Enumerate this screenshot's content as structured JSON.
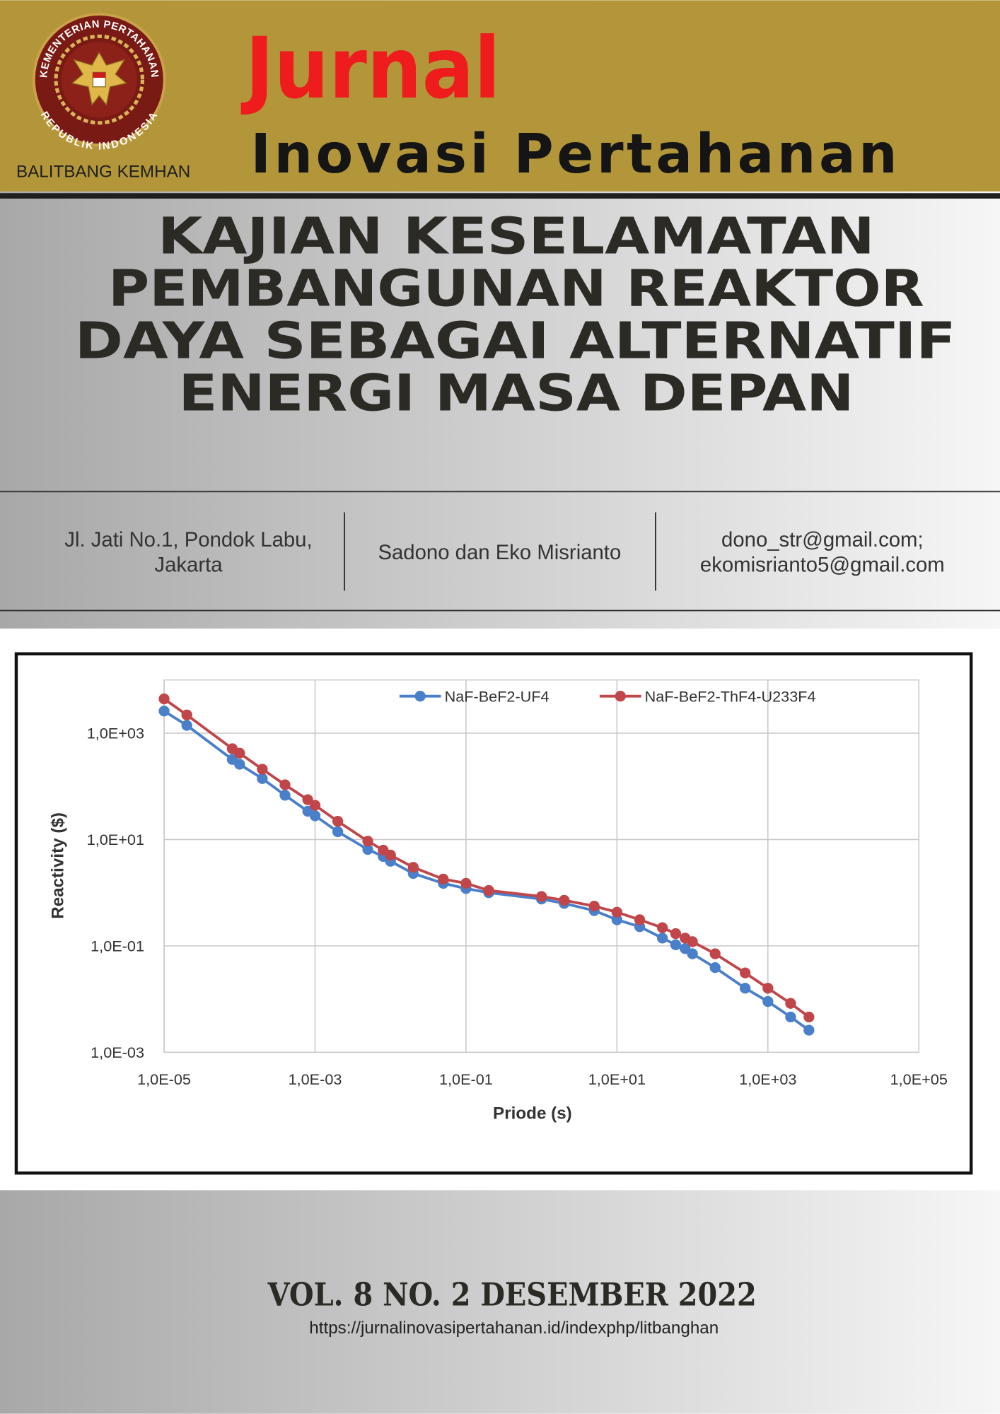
{
  "header": {
    "emblem_top": "KEMENTERIAN PERTAHANAN",
    "emblem_bottom": "REPUBLIK INDONESIA",
    "org": "BALITBANG KEMHAN",
    "journal_line1": "Jurnal",
    "journal_line2": "Inovasi Pertahanan"
  },
  "article": {
    "title_lines": [
      "KAJIAN KESELAMATAN",
      "PEMBANGUNAN REAKTOR",
      "DAYA SEBAGAI ALTERNATIF",
      "ENERGI MASA DEPAN"
    ],
    "address_lines": [
      "Jl. Jati No.1, Pondok Labu,",
      "Jakarta"
    ],
    "authors": "Sadono dan Eko Misrianto",
    "emails": [
      "dono_str@gmail.com;",
      "ekomisrianto5@gmail.com"
    ]
  },
  "chart_data": {
    "type": "line",
    "x_label": "Priode (s)",
    "y_label": "Reactivity ($)",
    "log_x": true,
    "log_y": true,
    "grid": true,
    "legend": "top",
    "marker": "circle",
    "xlim": [
      1e-05,
      100000
    ],
    "ylim": [
      0.001,
      10000
    ],
    "xticks": [
      {
        "value": 1e-05,
        "label": "1,0E-05"
      },
      {
        "value": 0.001,
        "label": "1,0E-03"
      },
      {
        "value": 0.1,
        "label": "1,0E-01"
      },
      {
        "value": 10,
        "label": "1,0E+01"
      },
      {
        "value": 1000,
        "label": "1,0E+03"
      },
      {
        "value": 100000,
        "label": "1,0E+05"
      }
    ],
    "yticks": [
      {
        "value": 0.001,
        "label": "1,0E-03"
      },
      {
        "value": 0.1,
        "label": "1,0E-01"
      },
      {
        "value": 10,
        "label": "1,0E+01"
      },
      {
        "value": 1000,
        "label": "1,0E+03"
      }
    ],
    "x": [
      1e-05,
      2e-05,
      8e-05,
      0.0001,
      0.0002,
      0.0004,
      0.0008,
      0.001,
      0.002,
      0.005,
      0.008,
      0.01,
      0.02,
      0.05,
      0.1,
      0.2,
      1,
      2,
      5,
      10,
      20,
      40,
      60,
      80,
      100,
      200,
      500,
      1000,
      2000,
      3500
    ],
    "series": [
      {
        "name": "NaF-BeF2-UF4",
        "color": "#4a7fc9",
        "values": [
          2600,
          1400,
          320,
          260,
          140,
          68,
          34,
          28,
          14,
          6.5,
          4.8,
          3.9,
          2.3,
          1.5,
          1.2,
          1.0,
          0.76,
          0.63,
          0.46,
          0.31,
          0.23,
          0.14,
          0.105,
          0.089,
          0.071,
          0.039,
          0.016,
          0.009,
          0.0046,
          0.0026
        ]
      },
      {
        "name": "NaF-BeF2-ThF4-U233F4",
        "color": "#c0464a",
        "values": [
          4400,
          2200,
          510,
          420,
          210,
          107,
          56,
          44,
          22,
          9.3,
          6.3,
          5.1,
          3.0,
          1.8,
          1.5,
          1.1,
          0.85,
          0.72,
          0.56,
          0.43,
          0.31,
          0.22,
          0.17,
          0.14,
          0.12,
          0.071,
          0.031,
          0.016,
          0.0083,
          0.0046
        ]
      }
    ]
  },
  "footer": {
    "volume": "VOL. 8 NO. 2 DESEMBER 2022",
    "url": "https://jurnalinovasipertahanan.id/indexphp/litbanghan"
  }
}
